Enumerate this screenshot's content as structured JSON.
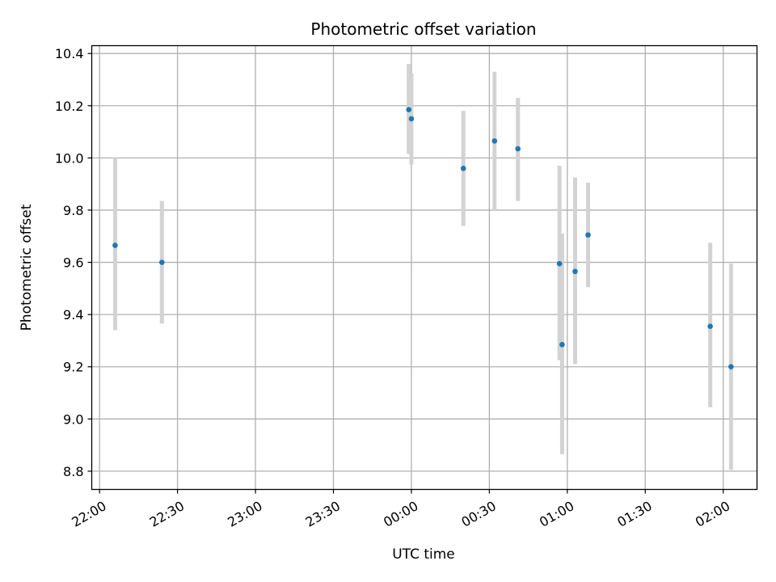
{
  "chart_data": {
    "type": "scatter",
    "title": "Photometric offset variation",
    "xlabel": "UTC time",
    "ylabel": "Photometric offset",
    "x_unit": "UTC time (HH:MM, spanning midnight)",
    "xlim": [
      "21:57",
      "02:13"
    ],
    "ylim": [
      8.73,
      10.43
    ],
    "x_ticks": [
      "22:00",
      "22:30",
      "23:00",
      "23:30",
      "00:00",
      "00:30",
      "01:00",
      "01:30",
      "02:00"
    ],
    "y_ticks": [
      "8.8",
      "9.0",
      "9.2",
      "9.4",
      "9.6",
      "9.8",
      "10.0",
      "10.2",
      "10.4"
    ],
    "grid": true,
    "marker_color": "#1f77b4",
    "errorbar_color": "#d3d3d3",
    "points": [
      {
        "t": "22:06",
        "y": 9.665,
        "lo": 9.34,
        "hi": 10.0
      },
      {
        "t": "22:24",
        "y": 9.6,
        "lo": 9.365,
        "hi": 9.835
      },
      {
        "t": "23:59",
        "y": 10.185,
        "lo": 10.015,
        "hi": 10.36
      },
      {
        "t": "00:00",
        "y": 10.15,
        "lo": 9.975,
        "hi": 10.325
      },
      {
        "t": "00:20",
        "y": 9.96,
        "lo": 9.74,
        "hi": 10.18
      },
      {
        "t": "00:32",
        "y": 10.065,
        "lo": 9.8,
        "hi": 10.33
      },
      {
        "t": "00:41",
        "y": 10.035,
        "lo": 9.835,
        "hi": 10.23
      },
      {
        "t": "00:57",
        "y": 9.595,
        "lo": 9.225,
        "hi": 9.97
      },
      {
        "t": "00:58",
        "y": 9.285,
        "lo": 8.865,
        "hi": 9.71
      },
      {
        "t": "01:03",
        "y": 9.565,
        "lo": 9.21,
        "hi": 9.925
      },
      {
        "t": "01:08",
        "y": 9.705,
        "lo": 9.505,
        "hi": 9.905
      },
      {
        "t": "01:55",
        "y": 9.355,
        "lo": 9.045,
        "hi": 9.675
      },
      {
        "t": "02:03",
        "y": 9.2,
        "lo": 8.805,
        "hi": 9.595
      }
    ]
  }
}
